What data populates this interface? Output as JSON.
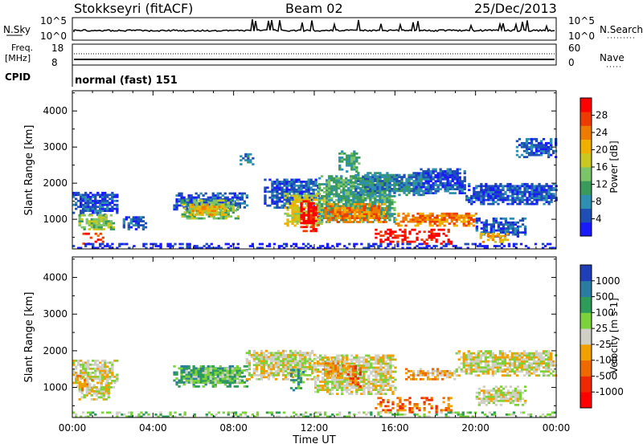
{
  "header": {
    "station": "Stokkseyri (fitACF)",
    "beam": "Beam 02",
    "date": "25/Dec/2013"
  },
  "top_panels": {
    "nsky_label": "N.Sky",
    "nsky_left_ticks": [
      "10^5",
      "10^0"
    ],
    "nsky_right_ticks": [
      "10^5",
      "10^0"
    ],
    "nsearch_label": "N.Search",
    "freq_label": "Freq.",
    "freq_unit": "[MHz]",
    "freq_ticks": [
      "18",
      "8"
    ],
    "nave_ticks": [
      "60",
      "0"
    ],
    "nave_label": "Nave",
    "cpid_label": "CPID",
    "cpid_text": "normal (fast) 151"
  },
  "x_axis": {
    "label": "Time UT",
    "ticks": [
      "00:00",
      "04:00",
      "08:00",
      "12:00",
      "16:00",
      "20:00",
      "00:00"
    ]
  },
  "chart_data": [
    {
      "type": "heatmap",
      "name": "power",
      "ylabel": "Slant Range [km]",
      "yticks": [
        1000,
        2000,
        3000,
        4000
      ],
      "ylim": [
        180,
        4560
      ],
      "xlim": [
        0,
        24
      ],
      "colorbar": {
        "label": "Power [dB]",
        "ticks": [
          "4",
          "8",
          "12",
          "16",
          "20",
          "24",
          "28"
        ],
        "colors": [
          "#1a1aff",
          "#1e4fb4",
          "#2e8fb0",
          "#3a9a5a",
          "#7cc46a",
          "#c8c820",
          "#f0b000",
          "#ee7a00",
          "#ee3c00",
          "#ff0000"
        ]
      },
      "regions": [
        {
          "t": [
            0.0,
            2.2
          ],
          "r": [
            1100,
            1750
          ],
          "level": 1
        },
        {
          "t": [
            0.3,
            2.0
          ],
          "r": [
            700,
            1100
          ],
          "level": 4
        },
        {
          "t": [
            0.5,
            1.5
          ],
          "r": [
            300,
            600
          ],
          "level": 8
        },
        {
          "t": [
            2.5,
            3.6
          ],
          "r": [
            700,
            1050
          ],
          "level": 1
        },
        {
          "t": [
            5.0,
            8.6
          ],
          "r": [
            1250,
            1700
          ],
          "level": 1
        },
        {
          "t": [
            5.4,
            8.2
          ],
          "r": [
            1000,
            1500
          ],
          "level": 4
        },
        {
          "t": [
            5.8,
            7.6
          ],
          "r": [
            1100,
            1400
          ],
          "level": 6
        },
        {
          "t": [
            9.5,
            12.2
          ],
          "r": [
            1300,
            2100
          ],
          "level": 1
        },
        {
          "t": [
            10.5,
            12.5
          ],
          "r": [
            800,
            1700
          ],
          "level": 5
        },
        {
          "t": [
            11.3,
            12.2
          ],
          "r": [
            650,
            1500
          ],
          "level": 9
        },
        {
          "t": [
            12.2,
            16.0
          ],
          "r": [
            900,
            2200
          ],
          "level": 3
        },
        {
          "t": [
            12.5,
            15.5
          ],
          "r": [
            900,
            1400
          ],
          "level": 7
        },
        {
          "t": [
            14.0,
            17.5
          ],
          "r": [
            1650,
            2300
          ],
          "level": 2
        },
        {
          "t": [
            15.0,
            18.8
          ],
          "r": [
            300,
            700
          ],
          "level": 9
        },
        {
          "t": [
            16.0,
            20.2
          ],
          "r": [
            800,
            1150
          ],
          "level": 7
        },
        {
          "t": [
            17.0,
            19.5
          ],
          "r": [
            1700,
            2400
          ],
          "level": 1
        },
        {
          "t": [
            19.5,
            24.0
          ],
          "r": [
            1400,
            2000
          ],
          "level": 1
        },
        {
          "t": [
            20.0,
            22.5
          ],
          "r": [
            500,
            1000
          ],
          "level": 1
        },
        {
          "t": [
            20.2,
            21.6
          ],
          "r": [
            350,
            600
          ],
          "level": 6
        },
        {
          "t": [
            8.3,
            9.0
          ],
          "r": [
            2500,
            2800
          ],
          "level": 2
        },
        {
          "t": [
            13.2,
            14.2
          ],
          "r": [
            2300,
            2900
          ],
          "level": 3
        },
        {
          "t": [
            22.0,
            24.0
          ],
          "r": [
            2700,
            3200
          ],
          "level": 1
        },
        {
          "t": [
            0.0,
            24.0
          ],
          "r": [
            180,
            330
          ],
          "level": 0
        }
      ]
    },
    {
      "type": "heatmap",
      "name": "velocity",
      "ylabel": "Slant Range [km]",
      "yticks": [
        1000,
        2000,
        3000,
        4000
      ],
      "ylim": [
        180,
        4560
      ],
      "xlim": [
        0,
        24
      ],
      "colorbar": {
        "label": "Velocity [m s-1]",
        "ticks": [
          "1000",
          "500",
          "100",
          "25",
          "-25",
          "-100",
          "-500",
          "-1000"
        ],
        "colors": [
          "#1f3fb8",
          "#2a7da0",
          "#2f9b5a",
          "#7cd23a",
          "#cfcfc6",
          "#f0a000",
          "#ee6a00",
          "#ee2800",
          "#ff0000"
        ]
      },
      "regions": [
        {
          "t": [
            0.0,
            2.2
          ],
          "r": [
            1100,
            1750
          ],
          "level": 4
        },
        {
          "t": [
            0.3,
            2.0
          ],
          "r": [
            650,
            1100
          ],
          "level": 4
        },
        {
          "t": [
            0.2,
            1.0
          ],
          "r": [
            900,
            1300
          ],
          "level": 5
        },
        {
          "t": [
            5.0,
            8.6
          ],
          "r": [
            1000,
            1600
          ],
          "level": 2
        },
        {
          "t": [
            5.6,
            8.4
          ],
          "r": [
            1100,
            1500
          ],
          "level": 3
        },
        {
          "t": [
            8.6,
            12.0
          ],
          "r": [
            1200,
            2000
          ],
          "level": 4
        },
        {
          "t": [
            10.8,
            11.5
          ],
          "r": [
            900,
            1500
          ],
          "level": 2
        },
        {
          "t": [
            12.0,
            16.0
          ],
          "r": [
            800,
            1900
          ],
          "level": 4
        },
        {
          "t": [
            12.4,
            13.4
          ],
          "r": [
            1300,
            1800
          ],
          "level": 5
        },
        {
          "t": [
            13.5,
            14.3
          ],
          "r": [
            1000,
            1600
          ],
          "level": 6
        },
        {
          "t": [
            15.0,
            18.8
          ],
          "r": [
            300,
            700
          ],
          "level": 6
        },
        {
          "t": [
            16.5,
            19.0
          ],
          "r": [
            1200,
            1500
          ],
          "level": 5
        },
        {
          "t": [
            19.0,
            24.0
          ],
          "r": [
            1300,
            2000
          ],
          "level": 4
        },
        {
          "t": [
            20.0,
            22.5
          ],
          "r": [
            500,
            1000
          ],
          "level": 4
        },
        {
          "t": [
            0.0,
            24.0
          ],
          "r": [
            180,
            330
          ],
          "level": 3
        }
      ]
    }
  ]
}
